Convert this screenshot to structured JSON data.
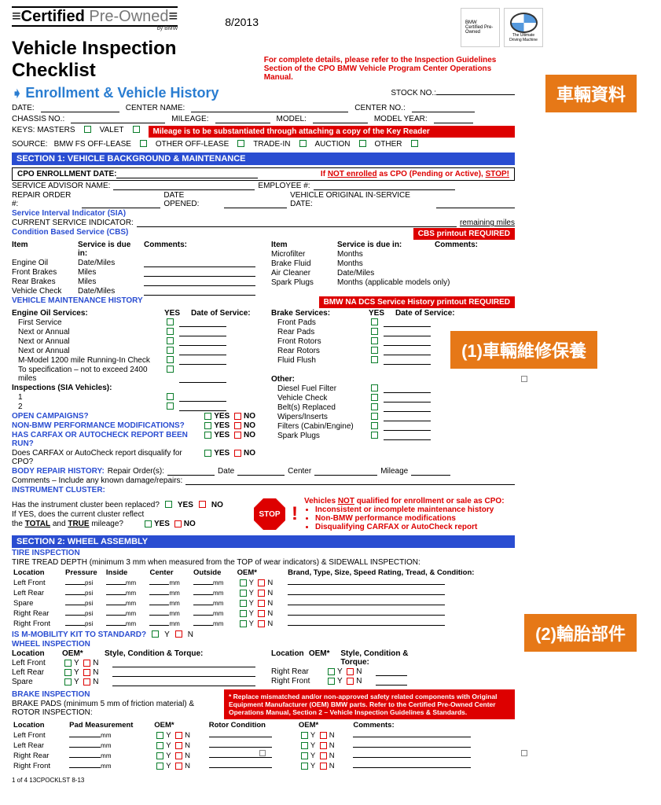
{
  "header": {
    "cert": "Certified",
    "preowned": " Pre-Owned",
    "by": "by BMW",
    "version": "8/2013",
    "brand_text": "BMW Certified Pre-Owned",
    "bmw_tagline": "The Ultimate Driving Machine"
  },
  "title": "Vehicle Inspection Checklist",
  "red_note_1": "For complete details, please refer to the Inspection Guidelines",
  "red_note_2": "Section of the CPO BMW Vehicle Program Center Operations Manual.",
  "enrollment": {
    "heading": "Enrollment & Vehicle History",
    "stock": "STOCK NO.:",
    "date": "DATE:",
    "center_name": "CENTER NAME:",
    "center_no": "CENTER NO.:",
    "chassis": "CHASSIS NO.:",
    "mileage": "MILEAGE:",
    "model": "MODEL:",
    "model_year": "MODEL YEAR:",
    "keys": "KEYS: MASTERS",
    "valet": "VALET",
    "mileage_note": "Mileage is to be substantiated through attaching a copy of the Key Reader",
    "source": "SOURCE:",
    "src_bmw": "BMW FS OFF-LEASE",
    "src_other": "OTHER OFF-LEASE",
    "src_trade": "TRADE-IN",
    "src_auction": "AUCTION",
    "src_other2": "OTHER"
  },
  "section1": {
    "title": "SECTION 1: VEHICLE BACKGROUND & MAINTENANCE",
    "cpo_enroll": "CPO ENROLLMENT DATE:",
    "not_enrolled": "If NOT enrolled as CPO (Pending or Active), STOP!",
    "advisor": "SERVICE ADVISOR NAME:",
    "employee": "EMPLOYEE #:",
    "repair_order": "REPAIR ORDER #:",
    "date_opened": "DATE OPENED:",
    "orig_service": "VEHICLE ORIGINAL IN-SERVICE DATE:",
    "sia": "Service Interval Indicator (SIA)",
    "current_si": "CURRENT SERVICE INDICATOR:",
    "remaining": "remaining miles",
    "cbs": "Condition Based Service (CBS)",
    "cbs_required": "CBS printout REQUIRED",
    "item": "Item",
    "due": "Service is due in:",
    "comments": "Comments:",
    "items_left": [
      "Engine Oil",
      "Front Brakes",
      "Rear Brakes",
      "Vehicle Check"
    ],
    "due_left": [
      "Date/Miles",
      "Miles",
      "Miles",
      "Date/Miles"
    ],
    "items_right": [
      "Microfilter",
      "Brake Fluid",
      "Air Cleaner",
      "Spark Plugs"
    ],
    "due_right": [
      "Months",
      "Months",
      "Date/Miles",
      "Months (applicable models only)"
    ],
    "maint_history": "VEHICLE MAINTENANCE HISTORY",
    "dcs_required": "BMW NA DCS Service History printout REQUIRED",
    "engine_oil": "Engine Oil Services:",
    "yes": "YES",
    "date_service": "Date of Service:",
    "brake_services": "Brake Services:",
    "oil_items": [
      "First Service",
      "Next or Annual",
      "Next or Annual",
      "Next or Annual",
      "M-Model 1200 mile Running-In Check",
      "To specification – not to exceed 2400 miles"
    ],
    "brake_items": [
      "Front Pads",
      "Rear Pads",
      "Front Rotors",
      "Rear Rotors",
      "Fluid Flush"
    ],
    "inspections": "Inspections (SIA Vehicles):",
    "insp_items": [
      "1",
      "2"
    ],
    "other": "Other:",
    "other_items": [
      "Diesel Fuel Filter",
      "Vehicle Check",
      "Belt(s) Replaced",
      "Wipers/Inserts",
      "Filters (Cabin/Engine)",
      "Spark Plugs"
    ],
    "open_campaigns": "OPEN CAMPAIGNS?",
    "non_bmw": "NON-BMW PERFORMANCE MODIFICATIONS?",
    "carfax": "HAS CARFAX OR AUTOCHECK REPORT BEEN RUN?",
    "carfax_dq": "Does CARFAX or AutoCheck report disqualify for CPO?",
    "body_repair": "BODY REPAIR HISTORY:",
    "repair_orders": "Repair Order(s):",
    "date_lbl": "Date",
    "center_lbl": "Center",
    "mileage_lbl": "Mileage",
    "comments_damage": "Comments – Include any known damage/repairs:",
    "instrument": "INSTRUMENT CLUSTER:",
    "cluster_q1": "Has the instrument cluster been replaced?",
    "cluster_q2a": "If YES, does the current cluster reflect",
    "cluster_q2b": "the TOTAL and TRUE mileage?",
    "yes_lbl": "YES",
    "no_lbl": "NO",
    "stop": "STOP",
    "not_qualified": "Vehicles NOT qualified for enrollment or sale as CPO:",
    "bullets": [
      "Inconsistent or incomplete maintenance history",
      "Non-BMW performance modifications",
      "Disqualifying CARFAX or AutoCheck report"
    ]
  },
  "section2": {
    "title": "SECTION 2: WHEEL ASSEMBLY",
    "tire_insp": "TIRE INSPECTION",
    "tread_note": "TIRE TREAD DEPTH (minimum 3 mm when measured from the TOP of wear indicators) & SIDEWALL INSPECTION:",
    "headers": [
      "Location",
      "Pressure",
      "Inside",
      "Center",
      "Outside",
      "OEM*",
      "Brand, Type, Size, Speed Rating, Tread, & Condition:"
    ],
    "tire_rows": [
      "Left Front",
      "Left Rear",
      "Spare",
      "Right Rear",
      "Right Front"
    ],
    "psi": "psi",
    "mm": "mm",
    "mobility": "IS M-MOBILITY KIT TO STANDARD?",
    "wheel_insp": "WHEEL INSPECTION",
    "wheel_headers": [
      "Location",
      "OEM*",
      "Style, Condition & Torque:"
    ],
    "wheel_left": [
      "Left Front",
      "Left Rear",
      "Spare"
    ],
    "wheel_right": [
      "Right Rear",
      "Right Front"
    ],
    "brake_insp": "BRAKE INSPECTION",
    "brake_note": "BRAKE PADS (minimum 5 mm of friction material) & ROTOR INSPECTION:",
    "brake_headers": [
      "Location",
      "Pad Measurement",
      "OEM*",
      "Rotor Condition",
      "OEM*",
      "Comments:"
    ],
    "brake_rows": [
      "Left Front",
      "Left Rear",
      "Right Rear",
      "Right Front"
    ],
    "red_note": "* Replace mismatched and/or non-approved safety related components with Original Equipment Manufacturer (OEM) BMW parts. Refer to the Certified Pre-Owned Center Operations Manual, Section 2 – Vehicle Inspection Guidelines & Standards.",
    "y": "Y",
    "n": "N"
  },
  "footer": "1 of 4   13CPOCKLST  8-13",
  "tags": {
    "tag1": "車輛資料",
    "tag2": "(1)車輛維修保養",
    "tag3": "(2)輪胎部件"
  }
}
